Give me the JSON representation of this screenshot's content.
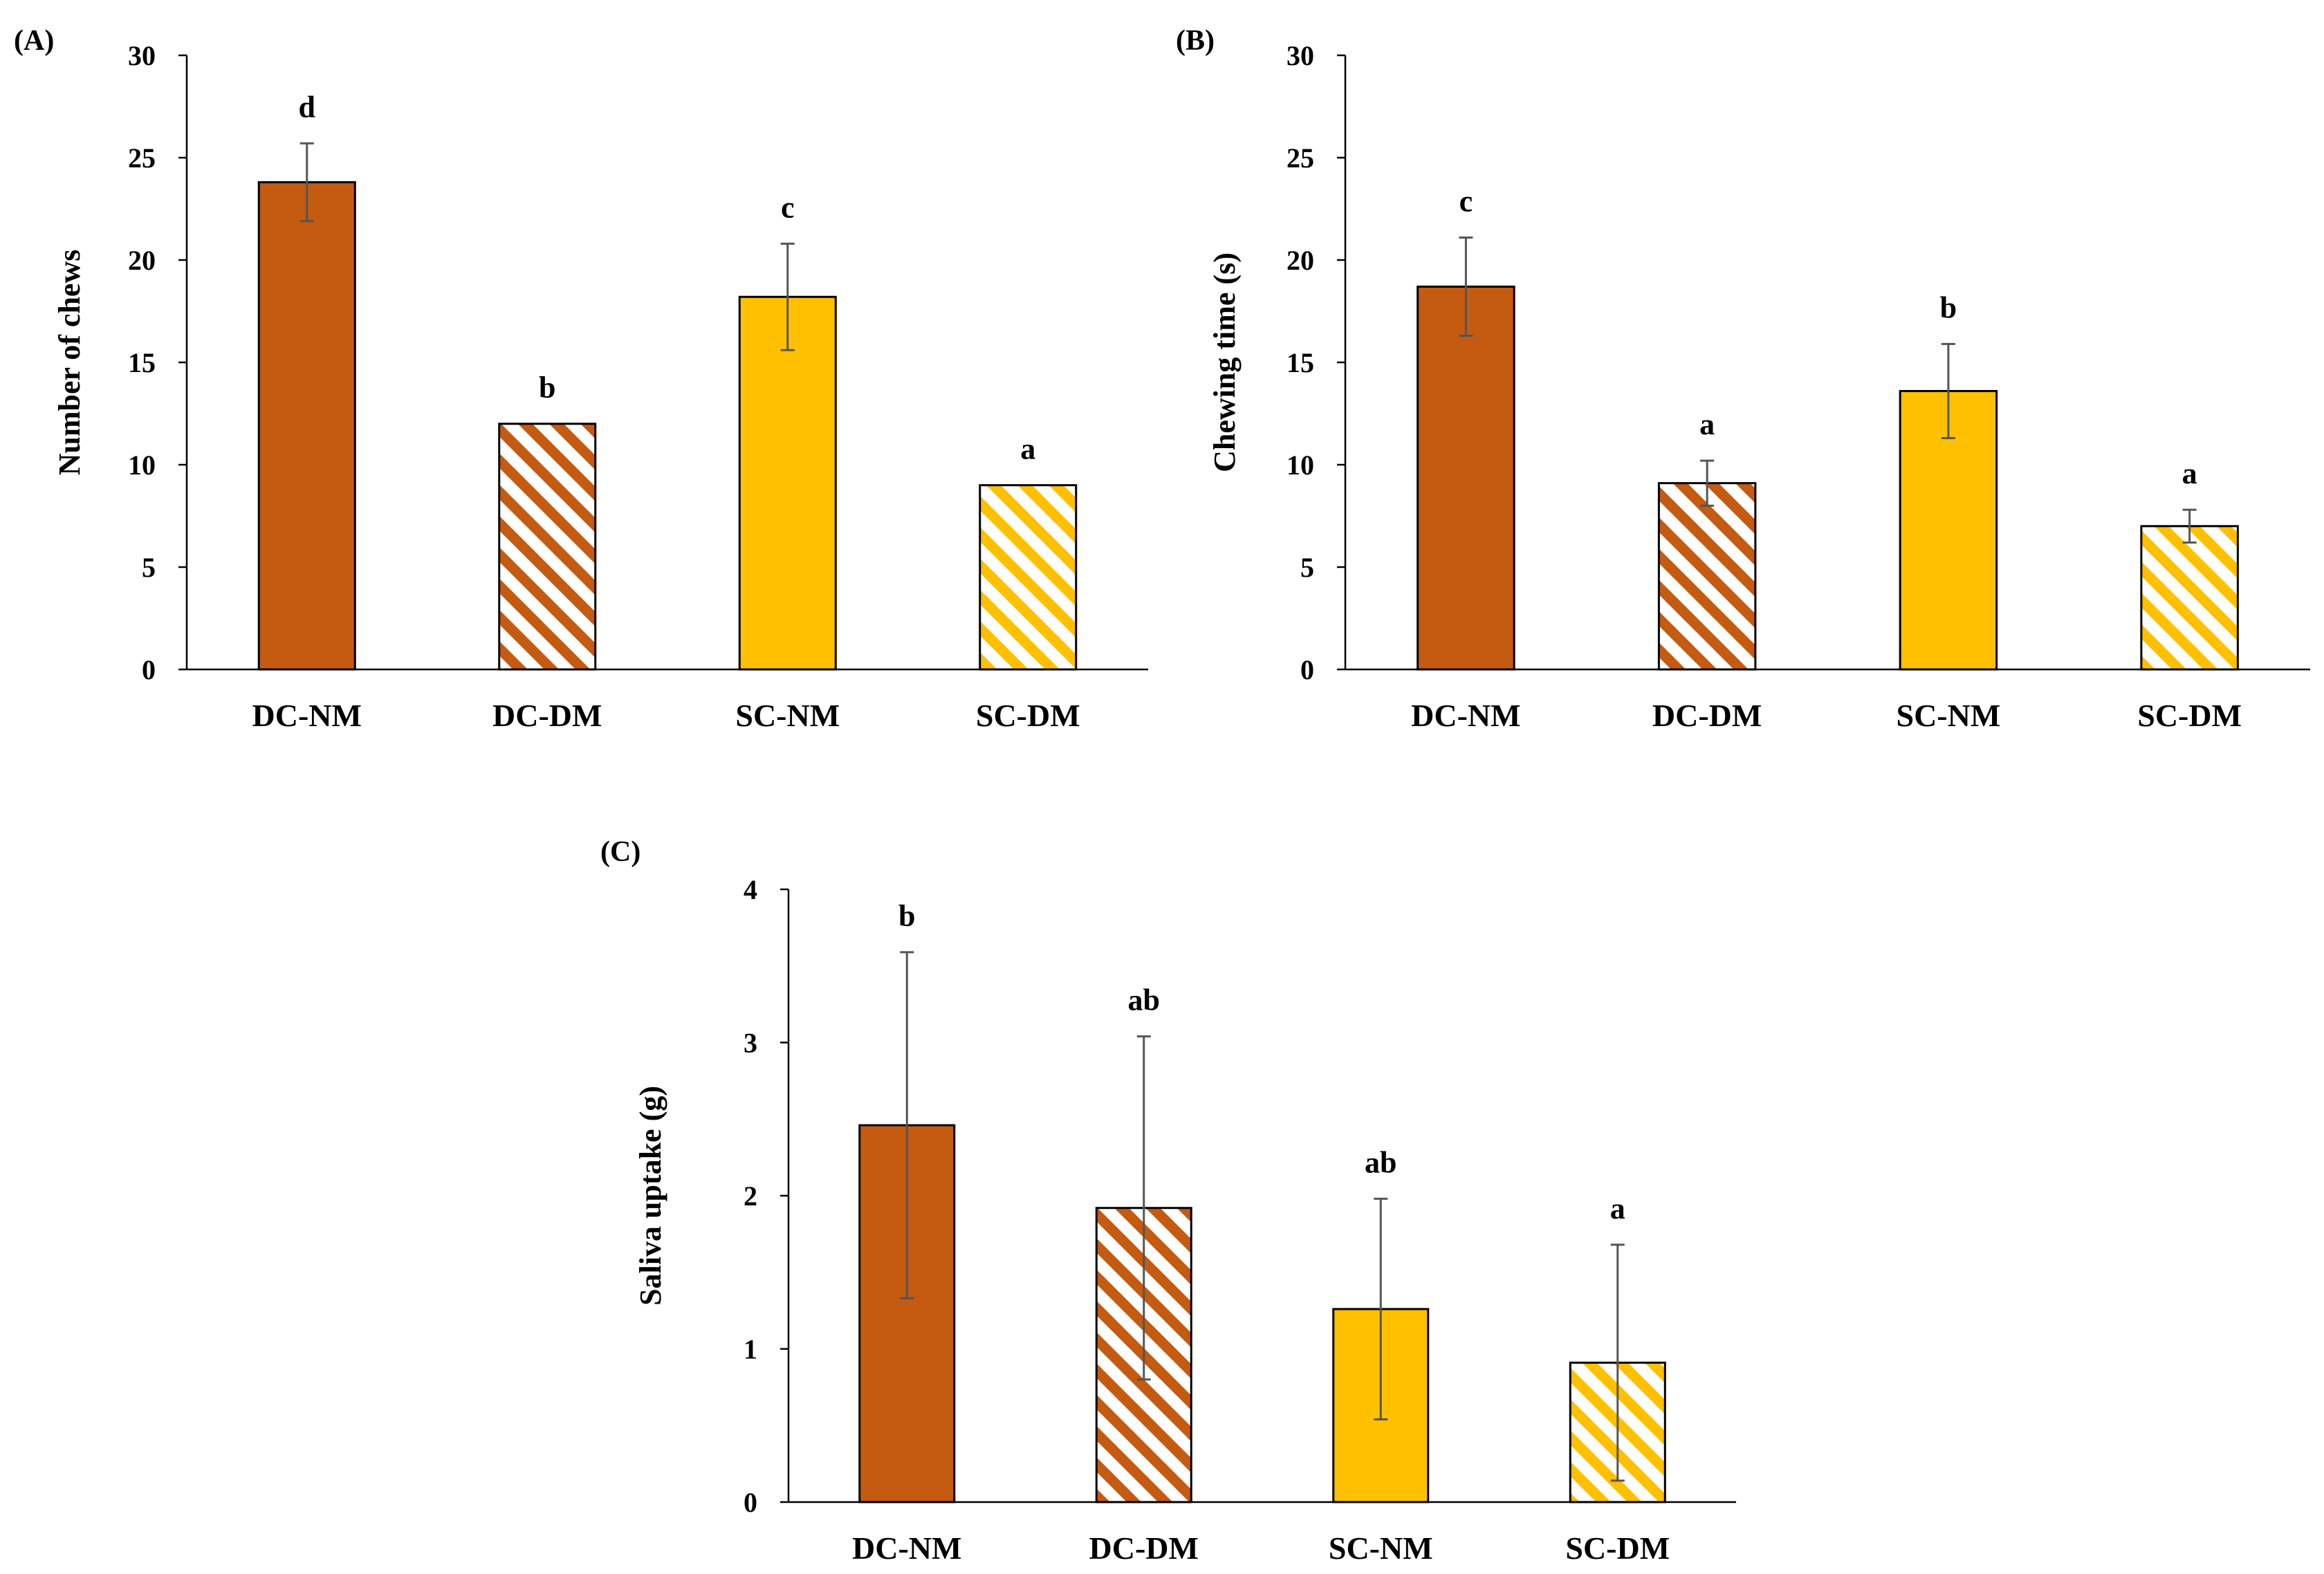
{
  "colors": {
    "dc": "#C55A11",
    "sc": "#FFC000",
    "error_bar": "#555555",
    "axis": "#000000"
  },
  "chart_data": [
    {
      "panel_label": "(A)",
      "type": "bar",
      "categories": [
        "DC-NM",
        "DC-DM",
        "SC-NM",
        "SC-DM"
      ],
      "values": [
        23.8,
        12.0,
        18.2,
        9.0
      ],
      "errors": [
        1.9,
        0.0,
        2.6,
        0.0
      ],
      "significance": [
        "d",
        "b",
        "c",
        "a"
      ],
      "fills": [
        "solid-dc",
        "striped-dc",
        "solid-sc",
        "striped-sc"
      ],
      "ylabel": "Number of chews",
      "xlabel": "",
      "ylim": [
        0,
        30
      ],
      "yticks": [
        0,
        5,
        10,
        15,
        20,
        25,
        30
      ],
      "grid": false
    },
    {
      "panel_label": "(B)",
      "type": "bar",
      "categories": [
        "DC-NM",
        "DC-DM",
        "SC-NM",
        "SC-DM"
      ],
      "values": [
        18.7,
        9.1,
        13.6,
        7.0
      ],
      "errors": [
        2.4,
        1.1,
        2.3,
        0.8
      ],
      "significance": [
        "c",
        "a",
        "b",
        "a"
      ],
      "fills": [
        "solid-dc",
        "striped-dc",
        "solid-sc",
        "striped-sc"
      ],
      "ylabel": "Chewing time (s)",
      "xlabel": "",
      "ylim": [
        0,
        30
      ],
      "yticks": [
        0,
        5,
        10,
        15,
        20,
        25,
        30
      ],
      "grid": false
    },
    {
      "panel_label": "(C)",
      "type": "bar",
      "categories": [
        "DC-NM",
        "DC-DM",
        "SC-NM",
        "SC-DM"
      ],
      "values": [
        2.46,
        1.92,
        1.26,
        0.91
      ],
      "errors": [
        1.13,
        1.12,
        0.72,
        0.77
      ],
      "significance": [
        "b",
        "ab",
        "ab",
        "a"
      ],
      "fills": [
        "solid-dc",
        "striped-dc",
        "solid-sc",
        "striped-sc"
      ],
      "ylabel": "Saliva uptake (g)",
      "xlabel": "",
      "ylim": [
        0,
        4
      ],
      "yticks": [
        0,
        1,
        2,
        3,
        4
      ],
      "grid": false
    }
  ]
}
